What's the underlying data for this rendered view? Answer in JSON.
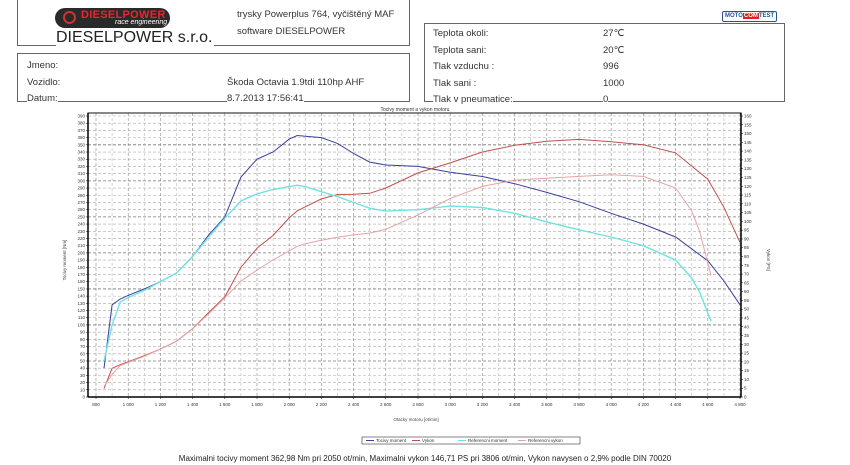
{
  "header": {
    "logo_text": "DIESELPOWER",
    "logo_sub": "race engineering",
    "company": "DIESELPOWER s.r.o.",
    "note_line1": "trysky Powerplus 764, vyčištěný MAF",
    "note_line2": "software DIESELPOWER",
    "test_logo": {
      "a": "MOTO",
      "b": "COM",
      "c": "TEST"
    }
  },
  "vehicle": {
    "name_label": "Jmeno:",
    "vehicle_label": "Vozidlo:",
    "vehicle_value": "Škoda Octavia 1.9tdi 110hp AHF",
    "date_label": "Datum:",
    "date_value": "8.7.2013 17:56:41"
  },
  "conditions": [
    {
      "label": "Teplota okoli:",
      "value": "27℃"
    },
    {
      "label": "Teplota sani:",
      "value": "20℃"
    },
    {
      "label": "Tlak vzduchu :",
      "value": "996"
    },
    {
      "label": "Tlak sani :",
      "value": "1000"
    },
    {
      "label": "Tlak v pneumatice:",
      "value": "0"
    }
  ],
  "summary": "Maximalni tocivy moment 362,98 Nm pri 2050 ot/min,  Maximalni vykon 146,71 PS pri 3806 ot/min,  Vykon navysen o 2,9% podle DIN 70020",
  "chart_data": {
    "type": "line",
    "title": "Tocivy moment a vykon motoru",
    "xlabel": "Otacky motoru [ot/min]",
    "ylabel": "Tocivy moment [Nm]",
    "y2label": "Vykon [PS]",
    "xlim": [
      800,
      4800
    ],
    "ylim": [
      0,
      390
    ],
    "y2lim": [
      0,
      160
    ],
    "xticks": [
      800,
      1000,
      1200,
      1400,
      1600,
      1800,
      2000,
      2200,
      2400,
      2600,
      2800,
      3000,
      3200,
      3400,
      3600,
      3800,
      4000,
      4200,
      4400,
      4600,
      4800
    ],
    "grid": true,
    "legend_position": "bottom",
    "series": [
      {
        "name": "Tocivy moment",
        "axis": "left",
        "color": "#3b3f9e",
        "x": [
          850,
          900,
          950,
          1000,
          1100,
          1200,
          1300,
          1400,
          1500,
          1600,
          1700,
          1800,
          1900,
          2000,
          2050,
          2100,
          2200,
          2300,
          2400,
          2500,
          2600,
          2800,
          3000,
          3200,
          3400,
          3600,
          3800,
          4000,
          4200,
          4400,
          4600,
          4700,
          4800
        ],
        "y": [
          40,
          128,
          136,
          141,
          150,
          160,
          172,
          195,
          225,
          250,
          305,
          330,
          340,
          358,
          363,
          362,
          360,
          352,
          338,
          326,
          322,
          320,
          312,
          306,
          296,
          284,
          271,
          255,
          240,
          222,
          189,
          161,
          128
        ]
      },
      {
        "name": "Vykon",
        "axis": "right",
        "color": "#c0504d",
        "x": [
          850,
          900,
          950,
          1000,
          1100,
          1200,
          1300,
          1400,
          1500,
          1600,
          1700,
          1800,
          1900,
          2000,
          2050,
          2100,
          2200,
          2300,
          2400,
          2500,
          2600,
          2800,
          3000,
          3200,
          3400,
          3600,
          3800,
          4000,
          4200,
          4400,
          4600,
          4700,
          4800
        ],
        "y": [
          4.8,
          16.4,
          18.4,
          20.1,
          23.5,
          27.3,
          31.8,
          38.9,
          48.1,
          57,
          73.8,
          84.7,
          92,
          102,
          106,
          108.3,
          112.8,
          115.3,
          115.5,
          116,
          119,
          127.6,
          133.3,
          139.5,
          143.3,
          145.6,
          146.7,
          145.3,
          143.6,
          139,
          124,
          108,
          88
        ]
      },
      {
        "name": "Referencni moment",
        "axis": "left",
        "color": "#6fe3e3",
        "x": [
          850,
          900,
          950,
          1000,
          1100,
          1200,
          1300,
          1400,
          1500,
          1600,
          1700,
          1800,
          1900,
          2000,
          2050,
          2100,
          2200,
          2300,
          2400,
          2500,
          2600,
          2800,
          3000,
          3200,
          3400,
          3600,
          3800,
          4000,
          4200,
          4400,
          4500,
          4550,
          4620
        ],
        "y": [
          50,
          100,
          132,
          138,
          148,
          160,
          172,
          195,
          222,
          248,
          272,
          282,
          288,
          292,
          294,
          292,
          285,
          278,
          270,
          262,
          258,
          260,
          265,
          263,
          255,
          243,
          232,
          222,
          210,
          190,
          165,
          145,
          105
        ]
      },
      {
        "name": "Referencni vykon",
        "axis": "right",
        "color": "#e6a3a3",
        "x": [
          850,
          900,
          950,
          1000,
          1100,
          1200,
          1300,
          1400,
          1500,
          1600,
          1700,
          1800,
          1900,
          2000,
          2050,
          2100,
          2200,
          2300,
          2400,
          2500,
          2600,
          2800,
          3000,
          3200,
          3400,
          3600,
          3800,
          4000,
          4200,
          4400,
          4500,
          4550,
          4620
        ],
        "y": [
          6,
          12.8,
          17.9,
          19.7,
          23.2,
          27.3,
          31.8,
          38.9,
          47.4,
          56.5,
          65.9,
          72.3,
          78,
          83.2,
          85.8,
          87.3,
          89.3,
          91,
          92.3,
          93.3,
          95.5,
          103.7,
          113.1,
          119.9,
          123.5,
          124.6,
          125.6,
          126.5,
          125.6,
          119,
          106,
          94,
          69
        ]
      }
    ]
  }
}
